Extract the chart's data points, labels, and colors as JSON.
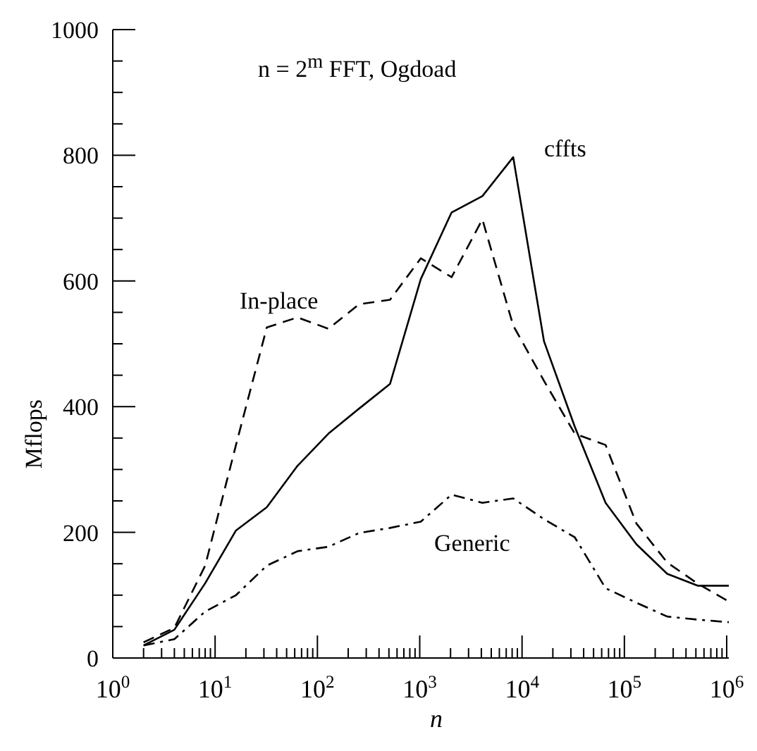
{
  "chart_data": {
    "type": "line",
    "title": "n = 2$^{m}$ FFT, Ogdoad",
    "xlabel": "n",
    "ylabel": "Mflops",
    "log": "x",
    "marker": "none",
    "x": [
      2,
      4,
      8,
      16,
      32,
      64,
      128,
      256,
      512,
      1024,
      2048,
      4096,
      8192,
      16384,
      32768,
      65536,
      131072,
      262144,
      524288,
      1048576
    ],
    "xlim": [
      1,
      1048576
    ],
    "xticks": [
      {
        "value": 1,
        "label": "10$^{0}$"
      },
      {
        "value": 2,
        "label": null
      },
      {
        "value": 3,
        "label": null
      },
      {
        "value": 4,
        "label": null
      },
      {
        "value": 5,
        "label": null
      },
      {
        "value": 6,
        "label": null
      },
      {
        "value": 7,
        "label": null
      },
      {
        "value": 8,
        "label": null
      },
      {
        "value": 9,
        "label": null
      },
      {
        "value": 10,
        "label": "10$^{1}$"
      },
      {
        "value": 20,
        "label": null
      },
      {
        "value": 30,
        "label": null
      },
      {
        "value": 40,
        "label": null
      },
      {
        "value": 50,
        "label": null
      },
      {
        "value": 60,
        "label": null
      },
      {
        "value": 70,
        "label": null
      },
      {
        "value": 80,
        "label": null
      },
      {
        "value": 90,
        "label": null
      },
      {
        "value": 100,
        "label": "10$^{2}$"
      },
      {
        "value": 200,
        "label": null
      },
      {
        "value": 300,
        "label": null
      },
      {
        "value": 400,
        "label": null
      },
      {
        "value": 500,
        "label": null
      },
      {
        "value": 600,
        "label": null
      },
      {
        "value": 700,
        "label": null
      },
      {
        "value": 800,
        "label": null
      },
      {
        "value": 900,
        "label": null
      },
      {
        "value": 1000,
        "label": "10$^{3}$"
      },
      {
        "value": 2000,
        "label": null
      },
      {
        "value": 3000,
        "label": null
      },
      {
        "value": 4000,
        "label": null
      },
      {
        "value": 5000,
        "label": null
      },
      {
        "value": 6000,
        "label": null
      },
      {
        "value": 7000,
        "label": null
      },
      {
        "value": 8000,
        "label": null
      },
      {
        "value": 9000,
        "label": null
      },
      {
        "value": 10000,
        "label": "10$^{4}$"
      },
      {
        "value": 20000,
        "label": null
      },
      {
        "value": 30000,
        "label": null
      },
      {
        "value": 40000,
        "label": null
      },
      {
        "value": 50000,
        "label": null
      },
      {
        "value": 60000,
        "label": null
      },
      {
        "value": 70000,
        "label": null
      },
      {
        "value": 80000,
        "label": null
      },
      {
        "value": 90000,
        "label": null
      },
      {
        "value": 100000,
        "label": "10$^{5}$"
      },
      {
        "value": 200000,
        "label": null
      },
      {
        "value": 300000,
        "label": null
      },
      {
        "value": 400000,
        "label": null
      },
      {
        "value": 500000,
        "label": null
      },
      {
        "value": 600000,
        "label": null
      },
      {
        "value": 700000,
        "label": null
      },
      {
        "value": 800000,
        "label": null
      },
      {
        "value": 900000,
        "label": null
      },
      {
        "value": 1000000,
        "label": "10$^{6}$"
      }
    ],
    "ylim": [
      0,
      1000
    ],
    "yticks": [
      0,
      {
        "value": 50,
        "label": null
      },
      {
        "value": 100,
        "label": null
      },
      {
        "value": 150,
        "label": null
      },
      200,
      {
        "value": 250,
        "label": null
      },
      {
        "value": 300,
        "label": null
      },
      {
        "value": 350,
        "label": null
      },
      400,
      {
        "value": 450,
        "label": null
      },
      {
        "value": 500,
        "label": null
      },
      {
        "value": 550,
        "label": null
      },
      600,
      {
        "value": 650,
        "label": null
      },
      {
        "value": 700,
        "label": null
      },
      {
        "value": 750,
        "label": null
      },
      800,
      {
        "value": 850,
        "label": null
      },
      {
        "value": 900,
        "label": null
      },
      {
        "value": 950,
        "label": null
      },
      1000
    ],
    "series": [
      {
        "name": "cffts",
        "color": "#000000",
        "line_style": "solid",
        "values": [
          20,
          45,
          119,
          203,
          240,
          306,
          357,
          397,
          436,
          603,
          709,
          735,
          797,
          504,
          368,
          247,
          181,
          134,
          115,
          115
        ]
      },
      {
        "name": "In-place",
        "color": "#000000",
        "line_style": "dashed",
        "values": [
          25,
          48,
          147,
          339,
          526,
          542,
          524,
          563,
          570,
          636,
          606,
          698,
          529,
          441,
          357,
          339,
          214,
          152,
          118,
          90
        ]
      },
      {
        "name": "Generic",
        "color": "#000000",
        "line_style": "dashdot",
        "values": [
          20,
          30,
          74,
          100,
          147,
          170,
          177,
          199,
          207,
          217,
          260,
          247,
          254,
          221,
          192,
          111,
          88,
          66,
          61,
          57
        ]
      }
    ]
  }
}
